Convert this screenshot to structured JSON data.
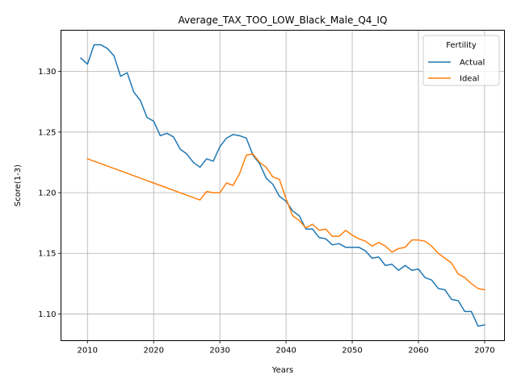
{
  "chart_data": {
    "type": "line",
    "title": "Average_TAX_TOO_LOW_Black_Male_Q4_IQ",
    "xlabel": "Years",
    "ylabel": "Score(1-3)",
    "xlim": [
      2006,
      2073
    ],
    "ylim": [
      1.078,
      1.334
    ],
    "xticks": [
      2010,
      2020,
      2030,
      2040,
      2050,
      2060,
      2070
    ],
    "yticks": [
      1.1,
      1.15,
      1.2,
      1.25,
      1.3
    ],
    "xtick_labels": [
      "2010",
      "2020",
      "2030",
      "2040",
      "2050",
      "2060",
      "2070"
    ],
    "ytick_labels": [
      "1.10",
      "1.15",
      "1.20",
      "1.25",
      "1.30"
    ],
    "grid": true,
    "legend": {
      "title": "Fertility",
      "placement": "top-right"
    },
    "series": [
      {
        "name": "Actual",
        "color": "#1f77b4",
        "x": [
          2009,
          2010,
          2011,
          2012,
          2013,
          2014,
          2015,
          2016,
          2017,
          2018,
          2019,
          2020,
          2021,
          2022,
          2023,
          2024,
          2025,
          2026,
          2027,
          2028,
          2029,
          2030,
          2031,
          2032,
          2033,
          2034,
          2035,
          2036,
          2037,
          2038,
          2039,
          2040,
          2041,
          2042,
          2043,
          2044,
          2045,
          2046,
          2047,
          2048,
          2049,
          2050,
          2051,
          2052,
          2053,
          2054,
          2055,
          2056,
          2057,
          2058,
          2059,
          2060,
          2061,
          2062,
          2063,
          2064,
          2065,
          2066,
          2067,
          2068,
          2069,
          2070
        ],
        "y": [
          1.311,
          1.306,
          1.322,
          1.322,
          1.319,
          1.313,
          1.296,
          1.299,
          1.283,
          1.276,
          1.262,
          1.259,
          1.247,
          1.249,
          1.246,
          1.236,
          1.232,
          1.225,
          1.221,
          1.228,
          1.226,
          1.238,
          1.245,
          1.248,
          1.247,
          1.245,
          1.231,
          1.224,
          1.212,
          1.207,
          1.197,
          1.193,
          1.185,
          1.181,
          1.17,
          1.17,
          1.163,
          1.162,
          1.157,
          1.158,
          1.155,
          1.155,
          1.155,
          1.152,
          1.146,
          1.147,
          1.14,
          1.141,
          1.136,
          1.14,
          1.136,
          1.137,
          1.13,
          1.128,
          1.121,
          1.12,
          1.112,
          1.111,
          1.102,
          1.102,
          1.09,
          1.091
        ]
      },
      {
        "name": "Ideal",
        "color": "#ff7f0e",
        "x": [
          2010,
          2011,
          2012,
          2013,
          2014,
          2015,
          2016,
          2017,
          2018,
          2019,
          2020,
          2021,
          2022,
          2023,
          2024,
          2025,
          2026,
          2027,
          2028,
          2029,
          2030,
          2031,
          2032,
          2033,
          2034,
          2035,
          2036,
          2037,
          2038,
          2039,
          2040,
          2041,
          2042,
          2043,
          2044,
          2045,
          2046,
          2047,
          2048,
          2049,
          2050,
          2051,
          2052,
          2053,
          2054,
          2055,
          2056,
          2057,
          2058,
          2059,
          2060,
          2061,
          2062,
          2063,
          2064,
          2065,
          2066,
          2067,
          2068,
          2069,
          2070
        ],
        "y": [
          1.228,
          1.226,
          1.224,
          1.222,
          1.22,
          1.218,
          1.216,
          1.214,
          1.212,
          1.21,
          1.208,
          1.206,
          1.204,
          1.202,
          1.2,
          1.198,
          1.196,
          1.194,
          1.201,
          1.2,
          1.2,
          1.208,
          1.206,
          1.216,
          1.231,
          1.232,
          1.225,
          1.221,
          1.213,
          1.211,
          1.195,
          1.181,
          1.177,
          1.171,
          1.174,
          1.169,
          1.17,
          1.164,
          1.164,
          1.169,
          1.165,
          1.162,
          1.16,
          1.156,
          1.159,
          1.156,
          1.151,
          1.154,
          1.155,
          1.161,
          1.161,
          1.16,
          1.156,
          1.15,
          1.146,
          1.142,
          1.133,
          1.13,
          1.125,
          1.121,
          1.12
        ]
      }
    ]
  }
}
